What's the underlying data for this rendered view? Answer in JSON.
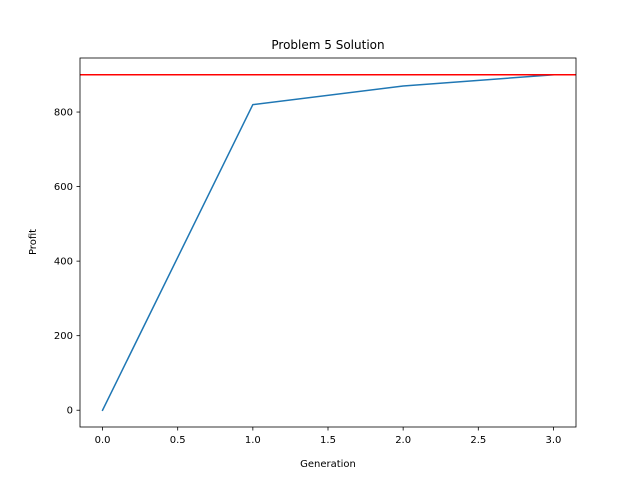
{
  "chart_data": {
    "type": "line",
    "title": "Problem 5 Solution",
    "xlabel": "Generation",
    "ylabel": "Profit",
    "xlim": [
      -0.15,
      3.15
    ],
    "ylim": [
      -45,
      945
    ],
    "x_ticks": [
      0.0,
      0.5,
      1.0,
      1.5,
      2.0,
      2.5,
      3.0
    ],
    "x_tick_labels": [
      "0.0",
      "0.5",
      "1.0",
      "1.5",
      "2.0",
      "2.5",
      "3.0"
    ],
    "y_ticks": [
      0,
      200,
      400,
      600,
      800
    ],
    "y_tick_labels": [
      "0",
      "200",
      "400",
      "600",
      "800"
    ],
    "grid": false,
    "series": [
      {
        "x": [
          0,
          1,
          2,
          3
        ],
        "values": [
          0,
          820,
          870,
          900
        ],
        "color": "#1f77b4"
      }
    ],
    "reference_lines": [
      {
        "orientation": "horizontal",
        "y": 900,
        "color": "#ff0000"
      }
    ]
  }
}
